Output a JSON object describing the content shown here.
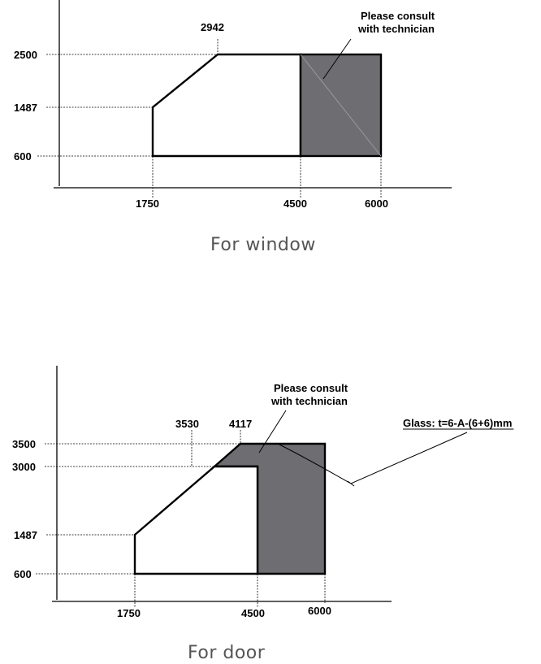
{
  "window": {
    "caption": "For window",
    "y_labels": [
      "2500",
      "1487",
      "600"
    ],
    "x_labels": [
      "1750",
      "4500",
      "6000"
    ],
    "peak_label": "2942",
    "note_line1": "Please consult",
    "note_line2": "with technician"
  },
  "door": {
    "caption": "For door",
    "y_labels": [
      "3500",
      "3000",
      "1487",
      "600"
    ],
    "x_labels": [
      "1750",
      "4500",
      "6000"
    ],
    "peak_labels": [
      "3530",
      "4117"
    ],
    "note_line1": "Please consult",
    "note_line2": "with technician",
    "glass_label": "Glass: t=6-A-(6+6)mm"
  },
  "colors": {
    "shade": "#6e6e72",
    "line": "#000000"
  }
}
